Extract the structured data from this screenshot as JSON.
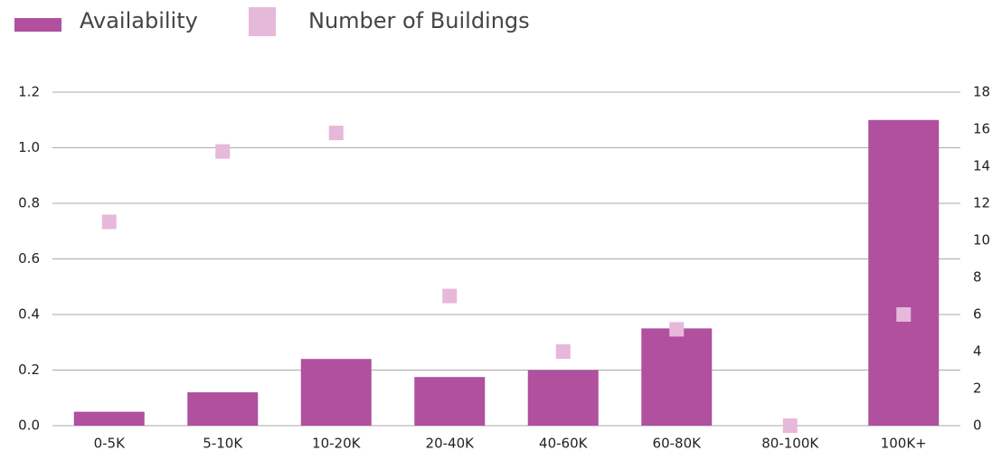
{
  "chart_data": {
    "type": "bar",
    "categories": [
      "0-5K",
      "5-10K",
      "10-20K",
      "20-40K",
      "40-60K",
      "60-80K",
      "80-100K",
      "100K+"
    ],
    "series": [
      {
        "name": "Availability",
        "type": "bar",
        "color": "#b0509f",
        "values": [
          0.05,
          0.12,
          0.24,
          0.175,
          0.2,
          0.35,
          0,
          1.1
        ]
      },
      {
        "name": "Number of Buildings",
        "type": "scatter",
        "axis": "y2",
        "color": "#e6b8d9",
        "values": [
          11,
          14.8,
          15.8,
          7,
          4,
          5.2,
          0,
          6
        ]
      }
    ],
    "ylim": [
      0,
      1.2
    ],
    "yticks": [
      {
        "value": 0,
        "label": "0.0"
      },
      0.2,
      0.4,
      0.6,
      0.8,
      {
        "value": 1,
        "label": "1.0"
      },
      1.2
    ],
    "y2lim": [
      0,
      18
    ],
    "y2ticks": [
      0,
      2,
      4,
      6,
      8,
      10,
      12,
      14,
      16,
      18
    ],
    "grid": true,
    "legend": "top"
  }
}
